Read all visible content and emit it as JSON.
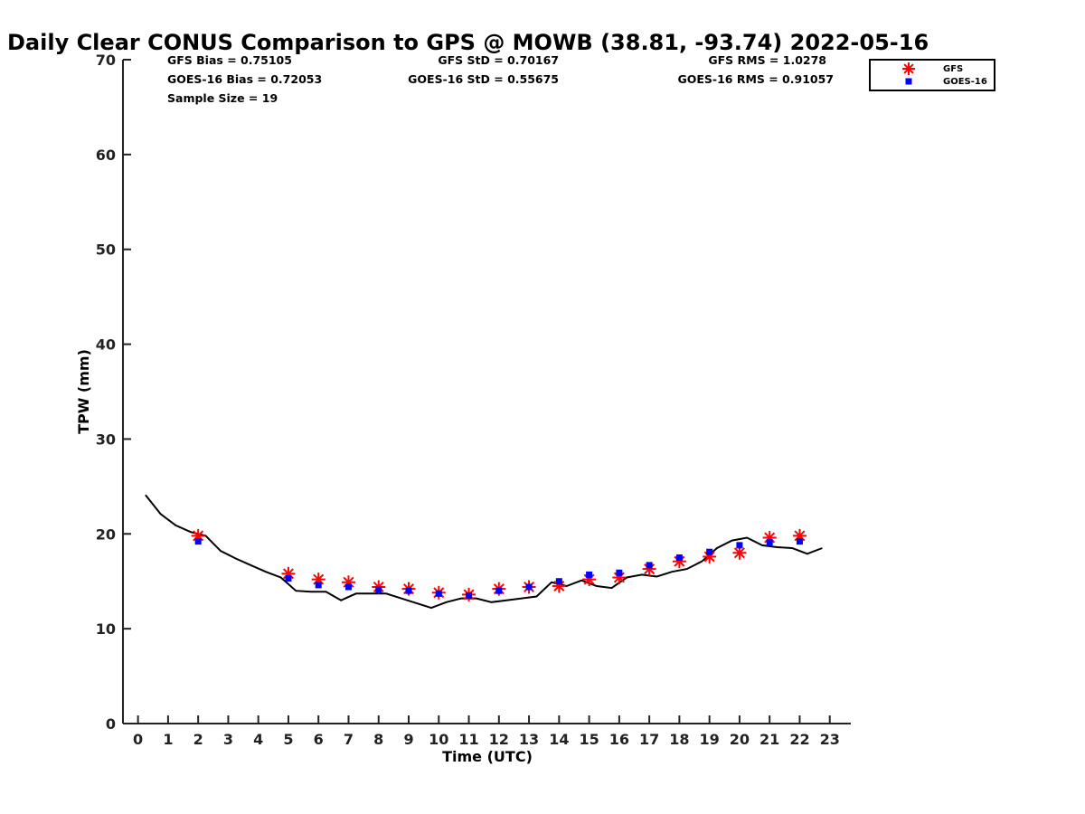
{
  "chart_data": {
    "type": "line",
    "title": "Daily Clear CONUS Comparison to GPS @ MOWB (38.81, -93.74) 2022-05-16",
    "xlabel": "Time (UTC)",
    "ylabel": "TPW (mm)",
    "xlim": [
      -0.5,
      23.7
    ],
    "ylim": [
      0,
      70
    ],
    "xticks": [
      "0",
      "1",
      "2",
      "3",
      "4",
      "5",
      "6",
      "7",
      "8",
      "9",
      "10",
      "11",
      "12",
      "13",
      "14",
      "15",
      "16",
      "17",
      "18",
      "19",
      "20",
      "21",
      "22",
      "23"
    ],
    "yticks": [
      "0",
      "10",
      "20",
      "30",
      "40",
      "50",
      "60",
      "70"
    ],
    "grid": false,
    "legend_position": "top-right",
    "stats": {
      "gfs_bias": "GFS Bias = 0.75105",
      "goes_bias": "GOES-16 Bias = 0.72053",
      "sample_size": "Sample Size = 19",
      "gfs_std": "GFS StD = 0.70167",
      "goes_std": "GOES-16 StD = 0.55675",
      "gfs_rms": "GFS RMS = 1.0278",
      "goes_rms": "GOES-16 RMS = 0.91057"
    },
    "series": [
      {
        "style": "line",
        "color": "#000000",
        "x": [
          0.25,
          0.75,
          1.25,
          1.75,
          2.25,
          2.75,
          3.25,
          3.75,
          4.25,
          4.75,
          5.25,
          5.75,
          6.25,
          6.75,
          7.25,
          7.75,
          8.25,
          8.75,
          9.25,
          9.75,
          10.25,
          10.75,
          11.25,
          11.75,
          12.25,
          12.75,
          13.25,
          13.75,
          14.25,
          14.75,
          15.25,
          15.75,
          16.25,
          16.75,
          17.25,
          17.75,
          18.25,
          18.75,
          19.25,
          19.75,
          20.25,
          20.75,
          21.25,
          21.75,
          22.25,
          22.75
        ],
        "y": [
          24.1,
          22.1,
          20.9,
          20.2,
          19.8,
          18.2,
          17.4,
          16.7,
          16.0,
          15.4,
          14.0,
          13.9,
          13.9,
          13.0,
          13.7,
          13.7,
          13.7,
          13.2,
          12.7,
          12.2,
          12.8,
          13.2,
          13.2,
          12.8,
          13.0,
          13.2,
          13.4,
          14.9,
          14.5,
          15.1,
          14.5,
          14.3,
          15.4,
          15.7,
          15.5,
          16.0,
          16.3,
          17.1,
          18.5,
          19.3,
          19.6,
          18.8,
          18.6,
          18.5,
          17.9,
          18.5
        ]
      },
      {
        "name": "GFS",
        "style": "marker",
        "marker": "asterisk",
        "color": "#ff0000",
        "x": [
          2,
          5,
          6,
          7,
          8,
          9,
          10,
          11,
          12,
          13,
          14,
          15,
          16,
          17,
          18,
          19,
          20,
          21,
          22
        ],
        "y": [
          19.8,
          15.8,
          15.2,
          14.9,
          14.4,
          14.2,
          13.8,
          13.6,
          14.2,
          14.4,
          14.5,
          15.2,
          15.4,
          16.3,
          17.1,
          17.6,
          18.0,
          19.6,
          19.8
        ]
      },
      {
        "name": "GOES-16",
        "style": "marker",
        "marker": "square",
        "color": "#0000ff",
        "x": [
          2,
          5,
          6,
          7,
          8,
          9,
          10,
          11,
          12,
          13,
          14,
          15,
          16,
          17,
          18,
          19,
          20,
          21,
          22
        ],
        "y": [
          19.2,
          15.3,
          14.6,
          14.4,
          14.1,
          14.0,
          13.7,
          13.5,
          14.0,
          14.4,
          15.0,
          15.7,
          15.9,
          16.7,
          17.5,
          18.1,
          18.8,
          19.1,
          19.2
        ]
      }
    ]
  }
}
